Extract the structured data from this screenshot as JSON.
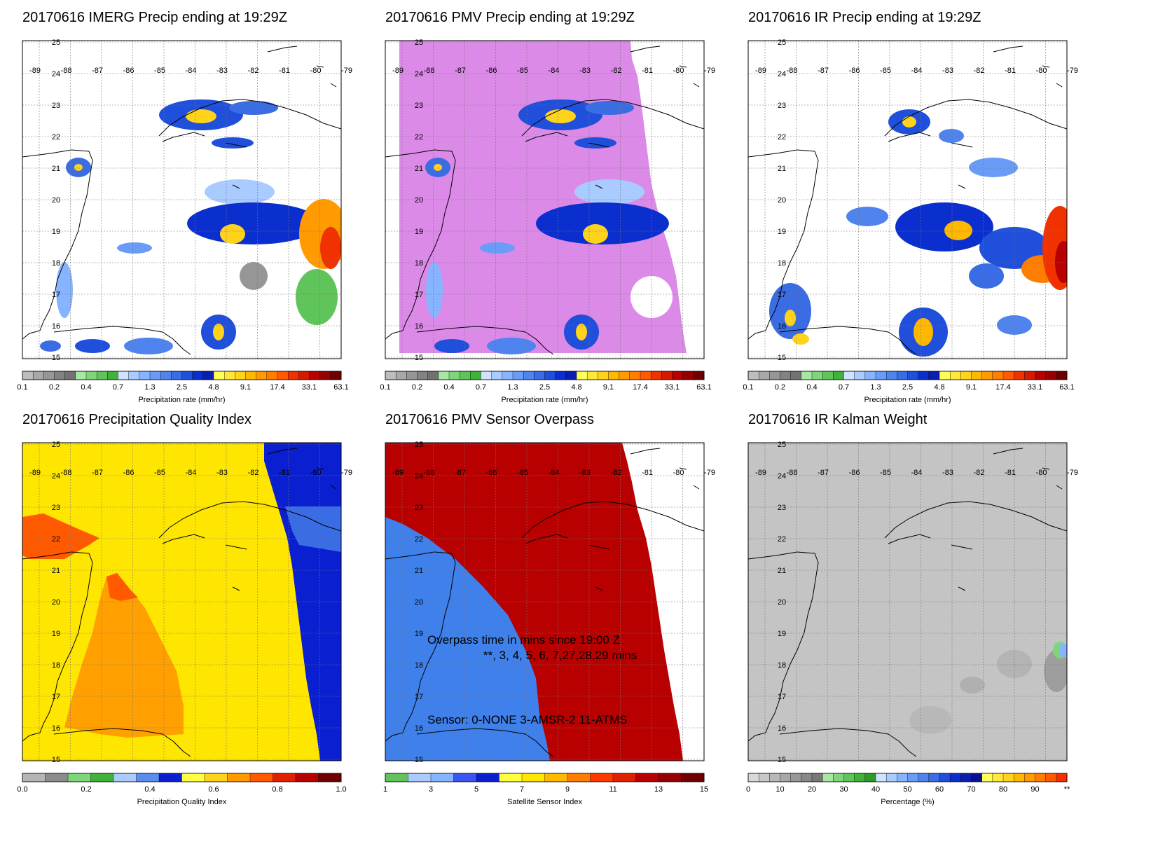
{
  "panels": [
    {
      "id": "imerg",
      "title": "20170616 IMERG Precip ending at 19:29Z",
      "background": "#ffffff",
      "colorbar": {
        "colors": [
          "#bdbdbd",
          "#a8a8a8",
          "#969696",
          "#828282",
          "#727272",
          "#a8e6a3",
          "#7fd67a",
          "#5fc45a",
          "#3fb23a",
          "#cfe3ff",
          "#a9cbff",
          "#86b4ff",
          "#6a9cf7",
          "#4f84ee",
          "#3a6ce4",
          "#1f4fdb",
          "#0b2fcf",
          "#0a1fb0",
          "#ffff5a",
          "#ffe83a",
          "#ffd21c",
          "#ffb800",
          "#ff9a00",
          "#ff7e00",
          "#ff5a00",
          "#f03200",
          "#d61a00",
          "#b80000",
          "#960000",
          "#6e0000"
        ],
        "ticks": [
          "0.1",
          "0.2",
          "0.4",
          "0.7",
          "1.3",
          "2.5",
          "4.8",
          "9.1",
          "17.4",
          "33.1",
          "63.1"
        ],
        "label": "Precipitation rate (mm/hr)"
      }
    },
    {
      "id": "pmv",
      "title": "20170616 PMV Precip ending at 19:29Z",
      "background": "#dc8ae8",
      "colorbar": {
        "colors": [
          "#bdbdbd",
          "#a8a8a8",
          "#969696",
          "#828282",
          "#727272",
          "#a8e6a3",
          "#7fd67a",
          "#5fc45a",
          "#3fb23a",
          "#cfe3ff",
          "#a9cbff",
          "#86b4ff",
          "#6a9cf7",
          "#4f84ee",
          "#3a6ce4",
          "#1f4fdb",
          "#0b2fcf",
          "#0a1fb0",
          "#ffff5a",
          "#ffe83a",
          "#ffd21c",
          "#ffb800",
          "#ff9a00",
          "#ff7e00",
          "#ff5a00",
          "#f03200",
          "#d61a00",
          "#b80000",
          "#960000",
          "#6e0000"
        ],
        "ticks": [
          "0.1",
          "0.2",
          "0.4",
          "0.7",
          "1.3",
          "2.5",
          "4.8",
          "9.1",
          "17.4",
          "33.1",
          "63.1"
        ],
        "label": "Precipitation rate (mm/hr)"
      }
    },
    {
      "id": "ir",
      "title": "20170616 IR Precip ending at 19:29Z",
      "background": "#ffffff",
      "colorbar": {
        "colors": [
          "#bdbdbd",
          "#a8a8a8",
          "#969696",
          "#828282",
          "#727272",
          "#a8e6a3",
          "#7fd67a",
          "#5fc45a",
          "#3fb23a",
          "#cfe3ff",
          "#a9cbff",
          "#86b4ff",
          "#6a9cf7",
          "#4f84ee",
          "#3a6ce4",
          "#1f4fdb",
          "#0b2fcf",
          "#0a1fb0",
          "#ffff5a",
          "#ffe83a",
          "#ffd21c",
          "#ffb800",
          "#ff9a00",
          "#ff7e00",
          "#ff5a00",
          "#f03200",
          "#d61a00",
          "#b80000",
          "#960000",
          "#6e0000"
        ],
        "ticks": [
          "0.1",
          "0.2",
          "0.4",
          "0.7",
          "1.3",
          "2.5",
          "4.8",
          "9.1",
          "17.4",
          "33.1",
          "63.1"
        ],
        "label": "Precipitation rate (mm/hr)"
      }
    },
    {
      "id": "pqi",
      "title": "20170616 Precipitation Quality Index",
      "background": "#ffe600",
      "colorbar": {
        "colors": [
          "#b5b5b5",
          "#8c8c8c",
          "#7fd67a",
          "#3fb23a",
          "#a9cbff",
          "#5a8df0",
          "#0a1fd0",
          "#ffff40",
          "#ffd21c",
          "#ff9a00",
          "#ff5a00",
          "#e02000",
          "#b80000",
          "#6e0000"
        ],
        "ticks": [
          "0.0",
          "0.2",
          "0.4",
          "0.6",
          "0.8",
          "1.0"
        ],
        "label": "Precipitation Quality Index"
      }
    },
    {
      "id": "overpass",
      "title": "20170616 PMV Sensor Overpass",
      "background": "#b80000",
      "colorbar": {
        "colors": [
          "#5fc45a",
          "#a9cbff",
          "#86b4ff",
          "#3a55f0",
          "#0a1fd0",
          "#ffff40",
          "#ffe600",
          "#ffb800",
          "#ff7e00",
          "#ff3a00",
          "#e02000",
          "#b80000",
          "#960000",
          "#6e0000"
        ],
        "ticks": [
          "1",
          "3",
          "5",
          "7",
          "9",
          "11",
          "13",
          "15"
        ],
        "label": "Satellite Sensor Index"
      },
      "notes": [
        "Overpass time in mins since 19:00 Z",
        "**, 3, 4, 5, 6, 7,27,28,29 mins",
        "Sensor:  0-NONE  3-AMSR-2 11-ATMS"
      ]
    },
    {
      "id": "kalman",
      "title": "20170616 IR Kalman Weight",
      "background": "#c4c4c4",
      "colorbar": {
        "colors": [
          "#d8d8d8",
          "#c8c8c8",
          "#b8b8b8",
          "#a8a8a8",
          "#989898",
          "#888888",
          "#787878",
          "#a8e6a3",
          "#7fd67a",
          "#5fc45a",
          "#3fb23a",
          "#2e9a2a",
          "#cfe3ff",
          "#a9cbff",
          "#86b4ff",
          "#6a9cf7",
          "#4f84ee",
          "#3a6ce4",
          "#1f4fdb",
          "#0b2fcf",
          "#0a1fb0",
          "#08108f",
          "#ffff5a",
          "#ffe83a",
          "#ffd21c",
          "#ffb800",
          "#ff9a00",
          "#ff7e00",
          "#ff5a00",
          "#f03200"
        ],
        "ticks": [
          "0",
          "10",
          "20",
          "30",
          "40",
          "50",
          "60",
          "70",
          "80",
          "90",
          "**"
        ],
        "label": "Percentage (%)"
      }
    }
  ],
  "axis_lon_labels": [
    "-89",
    "-88",
    "-87",
    "-86",
    "-85",
    "-84",
    "-83",
    "-82",
    "-81",
    "-80",
    "-79"
  ],
  "axis_lat_labels": [
    "25",
    "24",
    "23",
    "22",
    "21",
    "20",
    "19",
    "18",
    "17",
    "16",
    "15"
  ]
}
